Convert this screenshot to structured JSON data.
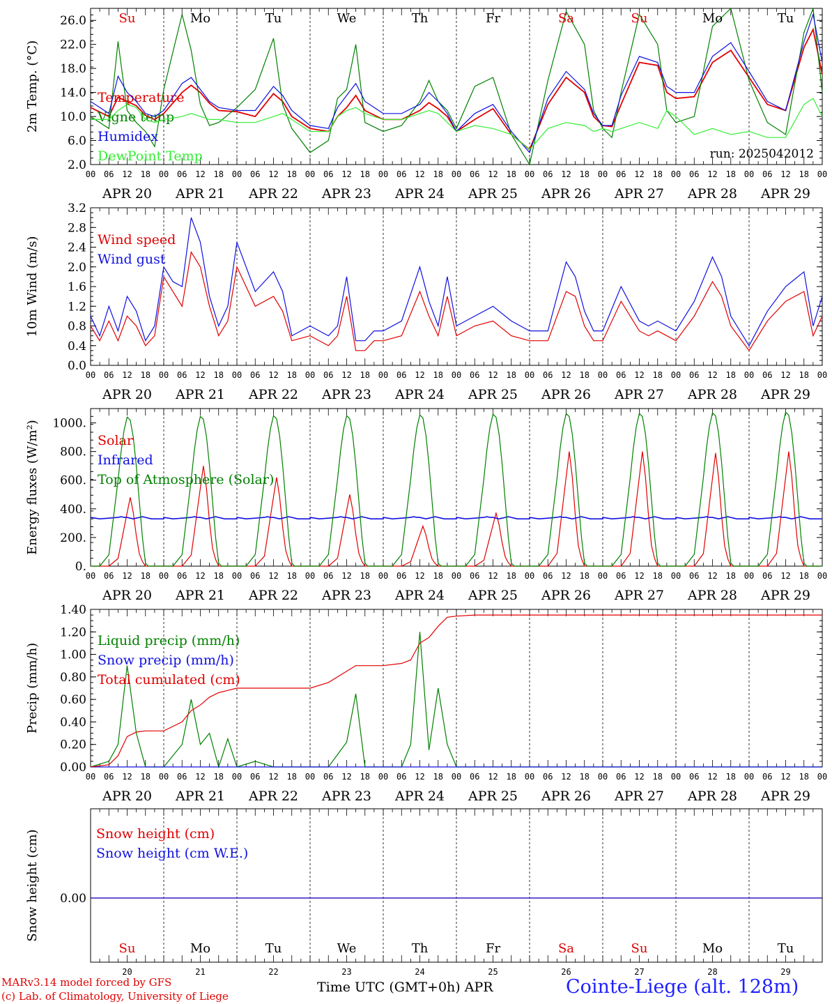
{
  "chart_data": [
    {
      "type": "line",
      "ylabel": "2m Temp. (°C)",
      "ylim": [
        2.0,
        28.0
      ],
      "yticks": [
        "2.0",
        "6.0",
        "10.0",
        "14.0",
        "18.0",
        "22.0",
        "26.0"
      ],
      "annotation": "run: 2025042012",
      "x_hours": [
        0,
        6,
        9,
        12,
        15,
        18,
        21,
        24,
        30,
        33,
        36,
        39,
        42,
        48,
        54,
        60,
        63,
        66,
        72,
        78,
        81,
        84,
        87,
        90,
        96,
        102,
        108,
        111,
        114,
        117,
        120,
        126,
        132,
        138,
        144,
        150,
        156,
        162,
        165,
        168,
        171,
        174,
        180,
        186,
        189,
        192,
        198,
        204,
        210,
        216,
        222,
        228,
        234,
        237,
        240
      ],
      "series": [
        {
          "name": "Temperature",
          "color": "#e00000",
          "values": [
            11.5,
            10.0,
            13.2,
            12.5,
            11.8,
            10.2,
            9.5,
            10.5,
            14.0,
            15.2,
            14.0,
            12.2,
            11.0,
            10.8,
            10.0,
            13.8,
            12.5,
            10.0,
            8.0,
            7.5,
            10.0,
            11.5,
            13.5,
            11.0,
            9.5,
            9.5,
            11.0,
            12.3,
            11.3,
            10.0,
            7.5,
            9.5,
            11.3,
            7.0,
            4.5,
            12.0,
            16.5,
            14.0,
            10.0,
            8.5,
            8.3,
            12.0,
            19.0,
            18.5,
            14.0,
            13.0,
            13.3,
            19.0,
            21.0,
            16.5,
            12.0,
            11.0,
            21.5,
            24.5,
            17.0
          ]
        },
        {
          "name": "Vigne temp",
          "color": "#008000",
          "values": [
            10.0,
            8.0,
            22.5,
            11.0,
            9.0,
            7.5,
            5.0,
            14.5,
            27.0,
            21.0,
            12.0,
            8.5,
            9.0,
            11.5,
            14.5,
            23.0,
            12.0,
            8.0,
            4.0,
            6.0,
            13.0,
            14.5,
            22.0,
            9.0,
            7.5,
            8.5,
            12.5,
            16.0,
            12.5,
            11.0,
            8.0,
            15.0,
            16.5,
            7.0,
            2.0,
            16.0,
            27.5,
            22.0,
            11.0,
            8.0,
            6.5,
            14.0,
            27.0,
            22.0,
            11.0,
            9.0,
            10.0,
            25.0,
            28.0,
            16.0,
            9.0,
            7.0,
            24.0,
            28.0,
            14.0
          ]
        },
        {
          "name": "Humidex",
          "color": "#1010e0",
          "values": [
            12.5,
            10.5,
            16.7,
            14.0,
            12.5,
            10.5,
            10.0,
            11.0,
            15.5,
            16.5,
            14.5,
            12.5,
            11.5,
            11.0,
            11.0,
            15.0,
            13.5,
            11.0,
            8.5,
            8.0,
            11.5,
            13.5,
            15.5,
            12.5,
            10.5,
            10.5,
            12.0,
            14.0,
            12.5,
            10.5,
            7.5,
            10.5,
            12.0,
            7.5,
            4.0,
            13.0,
            17.5,
            14.5,
            10.5,
            8.5,
            8.5,
            13.5,
            20.0,
            19.0,
            15.0,
            14.0,
            14.0,
            20.0,
            22.3,
            17.5,
            12.5,
            11.0,
            22.5,
            27.0,
            19.0
          ]
        },
        {
          "name": "DewPoint Temp",
          "color": "#33ee33",
          "values": [
            9.5,
            9.5,
            11.0,
            12.0,
            11.5,
            9.5,
            9.0,
            9.5,
            10.0,
            10.5,
            10.0,
            9.5,
            9.5,
            9.0,
            9.0,
            10.0,
            10.5,
            9.5,
            7.5,
            7.5,
            10.0,
            11.0,
            11.5,
            10.5,
            9.5,
            9.5,
            10.5,
            11.0,
            10.5,
            9.0,
            7.5,
            8.5,
            8.0,
            7.0,
            4.5,
            8.0,
            9.0,
            8.5,
            7.5,
            8.0,
            7.5,
            8.0,
            9.0,
            8.0,
            11.0,
            10.0,
            7.0,
            8.0,
            7.0,
            7.5,
            6.5,
            6.5,
            12.0,
            13.0,
            10.0
          ]
        }
      ]
    },
    {
      "type": "line",
      "ylabel": "10m Wind (m/s)",
      "ylim": [
        0.0,
        3.2
      ],
      "yticks": [
        "0.0",
        "0.4",
        "0.8",
        "1.2",
        "1.6",
        "2.0",
        "2.4",
        "2.8",
        "3.2"
      ],
      "x_hours": [
        0,
        3,
        6,
        9,
        12,
        15,
        18,
        21,
        24,
        27,
        30,
        33,
        36,
        39,
        42,
        45,
        48,
        54,
        60,
        63,
        66,
        72,
        78,
        81,
        84,
        87,
        90,
        93,
        96,
        102,
        108,
        111,
        114,
        117,
        120,
        126,
        132,
        138,
        144,
        150,
        156,
        159,
        162,
        165,
        168,
        174,
        180,
        183,
        186,
        192,
        198,
        204,
        207,
        210,
        216,
        222,
        228,
        234,
        237,
        240
      ],
      "series": [
        {
          "name": "Wind speed",
          "color": "#e00000",
          "values": [
            0.8,
            0.5,
            0.9,
            0.5,
            1.0,
            0.8,
            0.4,
            0.6,
            1.8,
            1.5,
            1.2,
            2.3,
            2.0,
            1.2,
            0.6,
            0.9,
            2.0,
            1.2,
            1.4,
            1.1,
            0.5,
            0.6,
            0.4,
            0.6,
            1.4,
            0.3,
            0.3,
            0.5,
            0.5,
            0.6,
            1.5,
            1.0,
            0.6,
            1.4,
            0.6,
            0.8,
            0.9,
            0.6,
            0.5,
            0.5,
            1.5,
            1.4,
            0.8,
            0.5,
            0.5,
            1.3,
            0.7,
            0.6,
            0.7,
            0.5,
            1.0,
            1.7,
            1.4,
            0.8,
            0.3,
            0.9,
            1.3,
            1.5,
            0.6,
            1.0
          ]
        },
        {
          "name": "Wind gust",
          "color": "#1010e0",
          "values": [
            1.0,
            0.6,
            1.2,
            0.7,
            1.4,
            1.1,
            0.5,
            0.8,
            2.0,
            1.7,
            1.6,
            3.0,
            2.5,
            1.4,
            0.8,
            1.2,
            2.5,
            1.5,
            1.9,
            1.5,
            0.6,
            0.8,
            0.6,
            0.8,
            1.8,
            0.5,
            0.5,
            0.7,
            0.7,
            0.9,
            2.0,
            1.3,
            0.8,
            1.8,
            0.8,
            1.0,
            1.2,
            0.9,
            0.7,
            0.7,
            2.1,
            1.8,
            1.1,
            0.7,
            0.7,
            1.6,
            0.9,
            0.8,
            0.9,
            0.7,
            1.3,
            2.2,
            1.8,
            1.0,
            0.4,
            1.1,
            1.6,
            1.9,
            0.8,
            1.4
          ]
        }
      ]
    },
    {
      "type": "line",
      "ylabel": "Energy fluxes (W/m²)",
      "ylim": [
        0,
        1100
      ],
      "yticks": [
        "0.",
        "200.",
        "400.",
        "600.",
        "800.",
        "1000."
      ],
      "x_hours": [
        0,
        3,
        6,
        9,
        10,
        11,
        12,
        13,
        14,
        15,
        16,
        17,
        18,
        19,
        20,
        21,
        22,
        23,
        24
      ],
      "series": [
        {
          "name": "Solar",
          "color": "#e00000",
          "daily_peak": [
            480,
            700,
            620,
            500,
            280,
            370,
            800,
            800,
            790,
            800
          ],
          "values": [
            0,
            0,
            0,
            50,
            150,
            250,
            350,
            450,
            350,
            200,
            80,
            30,
            0,
            0,
            0,
            0,
            0,
            0,
            0
          ]
        },
        {
          "name": "Infrared",
          "color": "#1010e0",
          "values": [
            340,
            330,
            335,
            340,
            345,
            340,
            340,
            335,
            330,
            335,
            340,
            345,
            340,
            335,
            330,
            330,
            330,
            330,
            330
          ]
        },
        {
          "name": "Top of Atmosphere (Solar)",
          "color": "#008000",
          "daily_peak": [
            1040,
            1045,
            1050,
            1050,
            1055,
            1060,
            1065,
            1065,
            1070,
            1075
          ],
          "values": [
            0,
            0,
            80,
            600,
            800,
            950,
            1040,
            1020,
            900,
            700,
            450,
            200,
            20,
            0,
            0,
            0,
            0,
            0,
            0
          ]
        }
      ]
    },
    {
      "type": "line",
      "ylabel": "Precip (mm/h)",
      "ylim": [
        0.0,
        1.4
      ],
      "yticks": [
        "0.00",
        "0.20",
        "0.40",
        "0.60",
        "0.80",
        "1.00",
        "1.20",
        "1.40"
      ],
      "x_hours": [
        0,
        6,
        9,
        12,
        15,
        18,
        24,
        30,
        33,
        36,
        39,
        42,
        45,
        48,
        54,
        60,
        66,
        72,
        78,
        84,
        87,
        90,
        96,
        102,
        105,
        108,
        111,
        114,
        117,
        120,
        126,
        240
      ],
      "series": [
        {
          "name": "Liquid precip (mm/h)",
          "color": "#008000",
          "values": [
            0.0,
            0.05,
            0.2,
            0.9,
            0.3,
            0.0,
            0.0,
            0.2,
            0.6,
            0.2,
            0.3,
            0.0,
            0.25,
            0.0,
            0.05,
            0.0,
            0.0,
            0.0,
            0.0,
            0.22,
            0.65,
            0.0,
            0.0,
            0.0,
            0.2,
            1.2,
            0.15,
            0.7,
            0.2,
            0.0,
            0.0,
            0.0
          ]
        },
        {
          "name": "Snow precip (mm/h)",
          "color": "#1010e0",
          "values": [
            0,
            0,
            0,
            0,
            0,
            0,
            0,
            0,
            0,
            0,
            0,
            0,
            0,
            0,
            0,
            0,
            0,
            0,
            0,
            0,
            0,
            0,
            0,
            0,
            0,
            0,
            0,
            0,
            0,
            0,
            0,
            0
          ]
        },
        {
          "name": "Total cumulated (cm)",
          "color": "#e00000",
          "values": [
            0.0,
            0.02,
            0.1,
            0.27,
            0.31,
            0.32,
            0.32,
            0.4,
            0.5,
            0.55,
            0.62,
            0.66,
            0.68,
            0.7,
            0.7,
            0.7,
            0.7,
            0.7,
            0.75,
            0.85,
            0.9,
            0.9,
            0.9,
            0.92,
            0.95,
            1.1,
            1.15,
            1.25,
            1.33,
            1.34,
            1.35,
            1.35
          ]
        }
      ]
    },
    {
      "type": "line",
      "ylabel": "Snow height (cm)",
      "yticks": [
        "0.00"
      ],
      "series": [
        {
          "name": "Snow height (cm)",
          "color": "#e00000",
          "values": [
            0.0,
            0.0
          ]
        },
        {
          "name": "Snow height (cm W.E.)",
          "color": "#1010e0",
          "values": [
            0.0,
            0.0
          ]
        }
      ]
    }
  ],
  "x_axis": {
    "hour_ticks": [
      "00",
      "06",
      "12",
      "18"
    ],
    "dates": [
      "APR 20",
      "APR 21",
      "APR 22",
      "APR 23",
      "APR 24",
      "APR 25",
      "APR 26",
      "APR 27",
      "APR 28",
      "APR 29"
    ],
    "weekdays": [
      "Su",
      "Mo",
      "Tu",
      "We",
      "Th",
      "Fr",
      "Sa",
      "Su",
      "Mo",
      "Tu"
    ],
    "weekend_color": "#e00000",
    "weekday_color": "#000000",
    "day_numbers": [
      "20",
      "21",
      "22",
      "23",
      "24",
      "25",
      "26",
      "27",
      "28",
      "29"
    ],
    "title": "Time UTC (GMT+0h)",
    "month": "APR"
  },
  "footer": {
    "credit_line1": "MARv3.14 model forced by GFS",
    "credit_line2": "(c) Lab. of Climatology, University of Liege",
    "station": "Cointe-Liege (alt. 128m)"
  }
}
